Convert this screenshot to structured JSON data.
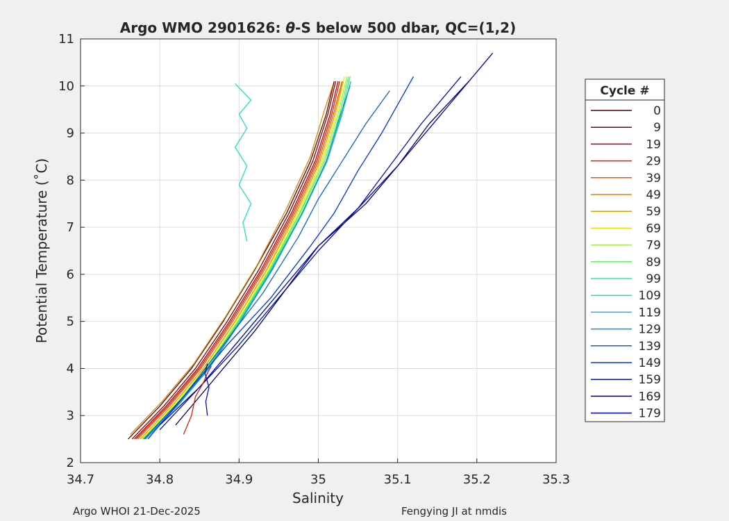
{
  "chart_data": {
    "type": "line",
    "title_prefix": "Argo WMO 2901626: ",
    "title_symbol": "θ",
    "title_suffix": "-S below 500 dbar,  QC=(1,2)",
    "xlabel": "Salinity",
    "ylabel": "Potential Temperature (˚C)",
    "xlim": [
      34.7,
      35.3
    ],
    "ylim": [
      2,
      11
    ],
    "x_ticks": [
      34.7,
      34.8,
      34.9,
      35,
      35.1,
      35.2,
      35.3
    ],
    "x_tick_labels": [
      "34.7",
      "34.8",
      "34.9",
      "35",
      "35.1",
      "35.2",
      "35.3"
    ],
    "y_ticks": [
      2,
      3,
      4,
      5,
      6,
      7,
      8,
      9,
      10,
      11
    ],
    "y_tick_labels": [
      "2",
      "3",
      "4",
      "5",
      "6",
      "7",
      "8",
      "9",
      "10",
      "11"
    ],
    "grid": true,
    "legend_title": "Cycle #",
    "legend_position": "outside-right",
    "legend_entries": [
      "0",
      "9",
      "19",
      "29",
      "39",
      "49",
      "59",
      "69",
      "79",
      "89",
      "99",
      "109",
      "119",
      "129",
      "139",
      "149",
      "159",
      "169",
      "179"
    ],
    "legend_colors": [
      "#550000",
      "#800000",
      "#aa0000",
      "#d42000",
      "#e65500",
      "#e08000",
      "#d4a000",
      "#e6e600",
      "#a0f040",
      "#60f060",
      "#30e890",
      "#20e0c0",
      "#20b0e0",
      "#1090d0",
      "#1060d0",
      "#0030e0",
      "#0010b0",
      "#000060",
      "#0000a0"
    ],
    "series": [
      {
        "cycle": "0",
        "color": "#550000",
        "s": [
          34.76,
          34.8,
          34.84,
          34.88,
          34.92,
          34.96,
          34.99,
          35.01,
          35.02
        ],
        "t": [
          2.5,
          3.2,
          4.0,
          5.0,
          6.1,
          7.3,
          8.4,
          9.4,
          10.1
        ]
      },
      {
        "cycle": "9",
        "color": "#800000",
        "s": [
          34.765,
          34.805,
          34.845,
          34.885,
          34.925,
          34.963,
          34.993,
          35.012,
          35.022
        ],
        "t": [
          2.5,
          3.2,
          4.0,
          5.0,
          6.1,
          7.3,
          8.4,
          9.4,
          10.1
        ]
      },
      {
        "cycle": "19",
        "color": "#aa0000",
        "s": [
          34.768,
          34.808,
          34.848,
          34.888,
          34.928,
          34.966,
          34.996,
          35.015,
          35.025
        ],
        "t": [
          2.5,
          3.2,
          4.0,
          5.0,
          6.1,
          7.3,
          8.4,
          9.4,
          10.1
        ]
      },
      {
        "cycle": "29",
        "color": "#d42000",
        "s": [
          34.77,
          34.81,
          34.85,
          34.89,
          34.93,
          34.968,
          34.998,
          35.017,
          35.027
        ],
        "t": [
          2.5,
          3.2,
          4.0,
          5.0,
          6.1,
          7.3,
          8.4,
          9.4,
          10.1
        ]
      },
      {
        "cycle": "39",
        "color": "#e65500",
        "s": [
          34.772,
          34.812,
          34.852,
          34.892,
          34.932,
          34.97,
          35.0,
          35.019,
          35.03
        ],
        "t": [
          2.5,
          3.2,
          4.0,
          5.0,
          6.1,
          7.3,
          8.4,
          9.4,
          10.1
        ]
      },
      {
        "cycle": "49",
        "color": "#e08000",
        "s": [
          34.763,
          34.803,
          34.843,
          34.883,
          34.923,
          34.96,
          34.99,
          35.008,
          35.018
        ],
        "t": [
          2.6,
          3.3,
          4.1,
          5.1,
          6.2,
          7.4,
          8.5,
          9.5,
          10.0
        ]
      },
      {
        "cycle": "59",
        "color": "#d4a000",
        "s": [
          34.775,
          34.815,
          34.855,
          34.895,
          34.935,
          34.972,
          35.002,
          35.021,
          35.031
        ],
        "t": [
          2.5,
          3.2,
          4.0,
          5.0,
          6.1,
          7.3,
          8.4,
          9.4,
          10.1
        ]
      },
      {
        "cycle": "69",
        "color": "#e6e600",
        "s": [
          34.776,
          34.816,
          34.856,
          34.896,
          34.936,
          34.974,
          35.004,
          35.023,
          35.033
        ],
        "t": [
          2.5,
          3.2,
          4.0,
          5.0,
          6.1,
          7.3,
          8.4,
          9.4,
          10.2
        ]
      },
      {
        "cycle": "79",
        "color": "#a0f040",
        "s": [
          34.778,
          34.818,
          34.858,
          34.898,
          34.938,
          34.976,
          35.006,
          35.025,
          35.036
        ],
        "t": [
          2.5,
          3.2,
          4.0,
          5.0,
          6.1,
          7.3,
          8.4,
          9.4,
          10.2
        ]
      },
      {
        "cycle": "89",
        "color": "#60f060",
        "s": [
          34.779,
          34.819,
          34.859,
          34.899,
          34.939,
          34.977,
          35.008,
          35.027,
          35.038
        ],
        "t": [
          2.5,
          3.2,
          4.0,
          5.0,
          6.1,
          7.3,
          8.4,
          9.4,
          10.2
        ]
      },
      {
        "cycle": "99",
        "color": "#30e890",
        "s": [
          34.78,
          34.82,
          34.86,
          34.9,
          34.94,
          34.979,
          35.01,
          35.029,
          35.04
        ],
        "t": [
          2.5,
          3.2,
          4.0,
          5.0,
          6.1,
          7.3,
          8.4,
          9.4,
          10.2
        ]
      },
      {
        "cycle": "109",
        "color": "#20e0c0",
        "s": [
          34.91,
          34.905,
          34.915,
          34.9,
          34.91,
          34.895,
          34.91,
          34.9,
          34.915,
          34.895
        ],
        "t": [
          6.7,
          7.1,
          7.5,
          7.9,
          8.3,
          8.7,
          9.1,
          9.4,
          9.7,
          10.05
        ]
      },
      {
        "cycle": "119",
        "color": "#20b0e0",
        "s": [
          34.781,
          34.821,
          34.861,
          34.901,
          34.941,
          34.98,
          35.011,
          35.03,
          35.041
        ],
        "t": [
          2.5,
          3.2,
          4.0,
          5.0,
          6.1,
          7.3,
          8.4,
          9.4,
          10.1
        ]
      },
      {
        "cycle": "129",
        "color": "#1090d0",
        "s": [
          34.782,
          34.822,
          34.862,
          34.902,
          34.942,
          34.98,
          35.01,
          35.028,
          35.04
        ],
        "t": [
          2.5,
          3.2,
          4.0,
          5.0,
          6.1,
          7.3,
          8.4,
          9.4,
          10.0
        ]
      },
      {
        "cycle": "139",
        "color": "#1060d0",
        "s": [
          34.78,
          34.83,
          34.88,
          34.93,
          34.975,
          35.0,
          35.03,
          35.06,
          35.09
        ],
        "t": [
          2.5,
          3.4,
          4.5,
          5.6,
          6.8,
          7.6,
          8.4,
          9.2,
          9.9
        ]
      },
      {
        "cycle": "149",
        "color": "#0030e0",
        "s": [
          34.785,
          34.83,
          34.885,
          34.94,
          34.99,
          35.02,
          35.05,
          35.08,
          35.12
        ],
        "t": [
          2.5,
          3.4,
          4.5,
          5.5,
          6.6,
          7.3,
          8.2,
          9.0,
          10.2
        ]
      },
      {
        "cycle": "159",
        "color": "#0010b0",
        "s": [
          34.8,
          34.85,
          34.9,
          34.95,
          35.0,
          35.05,
          35.09,
          35.13,
          35.18
        ],
        "t": [
          2.7,
          3.6,
          4.5,
          5.5,
          6.5,
          7.4,
          8.3,
          9.2,
          10.2
        ]
      },
      {
        "cycle": "169",
        "color": "#000060",
        "s": [
          34.82,
          34.87,
          34.92,
          34.96,
          35.0,
          35.06,
          35.1,
          35.14,
          35.19
        ],
        "t": [
          2.8,
          3.8,
          4.8,
          5.7,
          6.6,
          7.5,
          8.3,
          9.2,
          10.1
        ]
      },
      {
        "cycle": "179",
        "color": "#0000a0",
        "s": [
          34.8,
          34.85,
          34.9,
          34.95,
          35.0,
          35.05,
          35.1,
          35.15,
          35.22
        ],
        "t": [
          2.8,
          3.6,
          4.6,
          5.6,
          6.6,
          7.4,
          8.3,
          9.3,
          10.7
        ]
      },
      {
        "cycle": "29",
        "color": "#d42000",
        "s": [
          34.83,
          34.84,
          34.845,
          34.855,
          34.86,
          34.865
        ],
        "t": [
          2.6,
          3.0,
          3.4,
          3.7,
          3.9,
          4.05
        ]
      },
      {
        "cycle": "159",
        "color": "#0010b0",
        "s": [
          34.86,
          34.858,
          34.862,
          34.857,
          34.86
        ],
        "t": [
          3.0,
          3.3,
          3.6,
          3.9,
          4.1
        ]
      }
    ]
  },
  "footer": {
    "left": "Argo WHOI 21-Dec-2025",
    "right": "Fengying JI at nmdis"
  }
}
